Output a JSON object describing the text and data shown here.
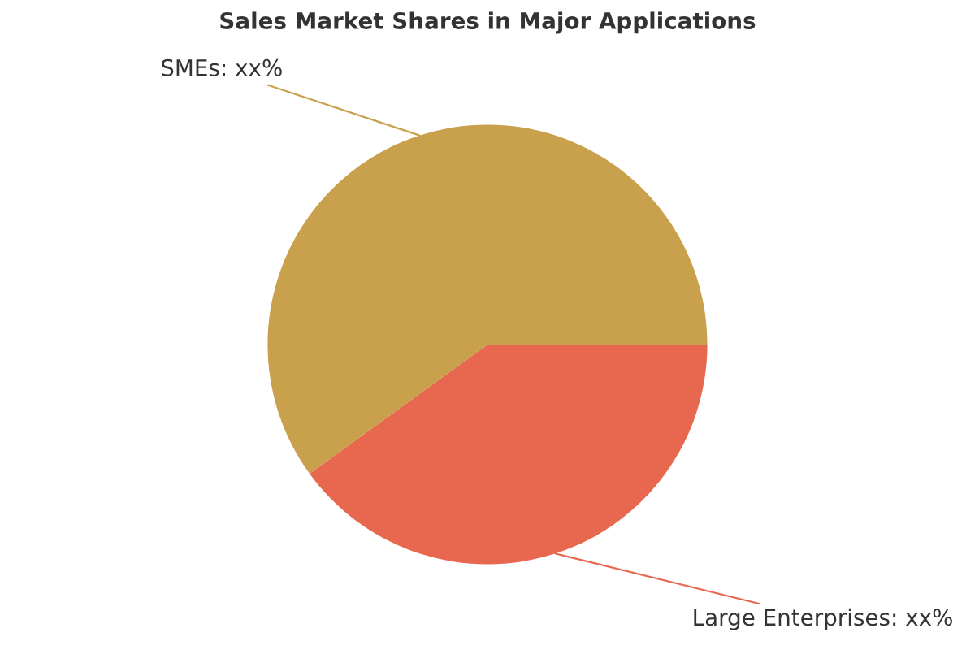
{
  "chart_data": {
    "type": "pie",
    "title": "Sales Market Shares in Major Applications",
    "categories": [
      "Large Enterprises: xx%",
      "SMEs: xx%"
    ],
    "values": [
      40,
      60
    ],
    "colors": [
      "#e8684f",
      "#c9a04b"
    ],
    "legend": false
  }
}
